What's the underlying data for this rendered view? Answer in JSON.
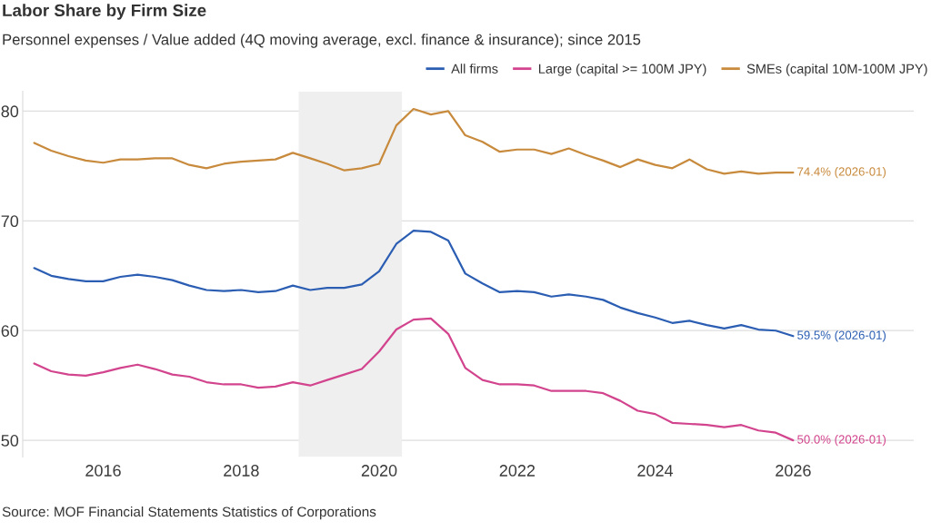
{
  "chart_data": {
    "type": "line",
    "title": "Labor Share by Firm Size",
    "subtitle": "Personnel expenses / Value added (4Q moving average, excl. finance & insurance); since 2015",
    "x": [
      "2015-01",
      "2015-04",
      "2015-07",
      "2015-10",
      "2016-01",
      "2016-04",
      "2016-07",
      "2016-10",
      "2017-01",
      "2017-04",
      "2017-07",
      "2017-10",
      "2018-01",
      "2018-04",
      "2018-07",
      "2018-10",
      "2019-01",
      "2019-04",
      "2019-07",
      "2019-10",
      "2020-01",
      "2020-04",
      "2020-07",
      "2020-10",
      "2021-01",
      "2021-04",
      "2021-07",
      "2021-10",
      "2022-01",
      "2022-04",
      "2022-07",
      "2022-10",
      "2023-01",
      "2023-04",
      "2023-07",
      "2023-10",
      "2024-01",
      "2024-04",
      "2024-07",
      "2024-10",
      "2025-01",
      "2025-04",
      "2025-07",
      "2025-10",
      "2026-01"
    ],
    "series": [
      {
        "name": "All firms",
        "color": "#2b5eb3",
        "values": [
          65.7,
          65.0,
          64.7,
          64.5,
          64.5,
          64.9,
          65.1,
          64.9,
          64.6,
          64.1,
          63.7,
          63.6,
          63.7,
          63.5,
          63.6,
          64.1,
          63.7,
          63.9,
          63.9,
          64.2,
          65.4,
          67.9,
          69.1,
          69.0,
          68.2,
          65.2,
          64.3,
          63.5,
          63.6,
          63.5,
          63.1,
          63.3,
          63.1,
          62.8,
          62.1,
          61.6,
          61.2,
          60.7,
          60.9,
          60.5,
          60.2,
          60.5,
          60.1,
          60.0,
          59.5
        ],
        "value_labels": [
          null,
          null,
          null,
          null,
          null,
          null,
          null,
          null,
          null,
          null,
          null,
          null,
          null,
          null,
          null,
          null,
          null,
          null,
          null,
          null,
          null,
          null,
          null,
          null,
          null,
          null,
          null,
          null,
          null,
          null,
          null,
          null,
          null,
          null,
          null,
          null,
          null,
          null,
          null,
          null,
          null,
          null,
          null,
          null,
          "59.5% (2026-01)"
        ]
      },
      {
        "name": "Large (capital >= 100M JPY)",
        "color": "#d2448d",
        "values": [
          57.0,
          56.3,
          56.0,
          55.9,
          56.2,
          56.6,
          56.9,
          56.5,
          56.0,
          55.8,
          55.3,
          55.1,
          55.1,
          54.8,
          54.9,
          55.3,
          55.0,
          55.5,
          56.0,
          56.5,
          58.1,
          60.1,
          61.0,
          61.1,
          59.7,
          56.6,
          55.5,
          55.1,
          55.1,
          55.0,
          54.5,
          54.5,
          54.5,
          54.3,
          53.6,
          52.7,
          52.4,
          51.6,
          51.5,
          51.4,
          51.2,
          51.4,
          50.9,
          50.7,
          50.0
        ],
        "value_labels": [
          null,
          null,
          null,
          null,
          null,
          null,
          null,
          null,
          null,
          null,
          null,
          null,
          null,
          null,
          null,
          null,
          null,
          null,
          null,
          null,
          null,
          null,
          null,
          null,
          null,
          null,
          null,
          null,
          null,
          null,
          null,
          null,
          null,
          null,
          null,
          null,
          null,
          null,
          null,
          null,
          null,
          null,
          null,
          null,
          "50.0% (2026-01)"
        ]
      },
      {
        "name": "SMEs (capital 10M-100M JPY)",
        "color": "#c88a3c",
        "values": [
          77.1,
          76.4,
          75.9,
          75.5,
          75.3,
          75.6,
          75.6,
          75.7,
          75.7,
          75.1,
          74.8,
          75.2,
          75.4,
          75.5,
          75.6,
          76.2,
          75.7,
          75.2,
          74.6,
          74.8,
          75.2,
          78.7,
          80.2,
          79.7,
          80.0,
          77.8,
          77.2,
          76.3,
          76.5,
          76.5,
          76.1,
          76.6,
          76.0,
          75.5,
          74.9,
          75.6,
          75.1,
          74.8,
          75.6,
          74.7,
          74.3,
          74.5,
          74.3,
          74.4,
          74.4
        ],
        "value_labels": [
          null,
          null,
          null,
          null,
          null,
          null,
          null,
          null,
          null,
          null,
          null,
          null,
          null,
          null,
          null,
          null,
          null,
          null,
          null,
          null,
          null,
          null,
          null,
          null,
          null,
          null,
          null,
          null,
          null,
          null,
          null,
          null,
          null,
          null,
          null,
          null,
          null,
          null,
          null,
          null,
          null,
          null,
          null,
          null,
          "74.4% (2026-01)"
        ]
      }
    ],
    "xlim": [
      "2014-11",
      "2027-10"
    ],
    "xticks": [
      "2016",
      "2018",
      "2020",
      "2022",
      "2024",
      "2026"
    ],
    "ylim": [
      48.5,
      81.8
    ],
    "yticks": [
      50,
      60,
      70,
      80
    ],
    "bands": [
      {
        "axis": "x",
        "from": "2018-11",
        "to": "2020-05",
        "color": "#efefef"
      }
    ],
    "grid": "y",
    "legend": "top right",
    "annotations": [
      "Source: MOF Financial Statements Statistics of Corporations"
    ]
  }
}
